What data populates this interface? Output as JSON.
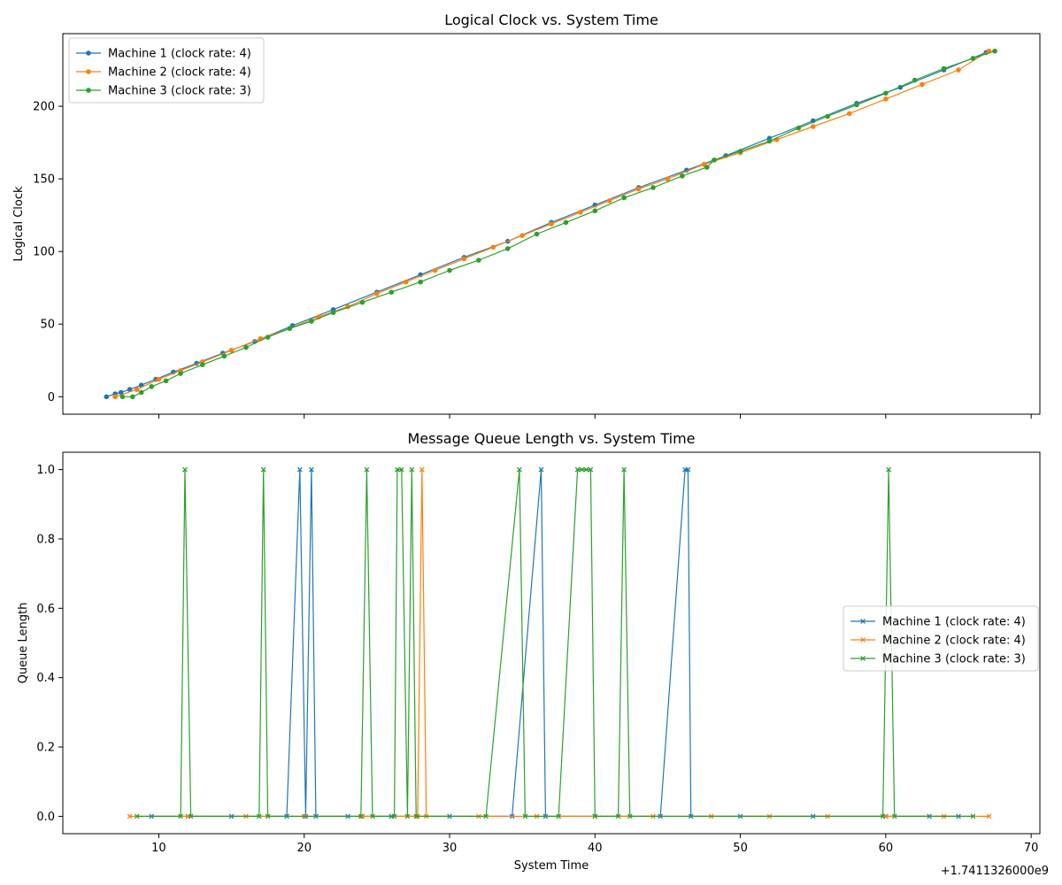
{
  "figure": {
    "offset_text": "+1.7411326000e9"
  },
  "chart_data": [
    {
      "type": "line",
      "title": "Logical Clock vs. System Time",
      "xlabel": "",
      "ylabel": "Logical Clock",
      "xlim": [
        3.4,
        70.6
      ],
      "ylim": [
        -12,
        250
      ],
      "x_ticks": [
        10,
        20,
        30,
        40,
        50,
        60,
        70
      ],
      "x_tick_labels": [
        "",
        "",
        "",
        "",
        "",
        "",
        ""
      ],
      "y_ticks": [
        0,
        50,
        100,
        150,
        200
      ],
      "y_tick_labels": [
        "0",
        "50",
        "100",
        "150",
        "200"
      ],
      "grid": false,
      "legend_position": "top-left",
      "marker": "circle",
      "series": [
        {
          "name": "Machine 1 (clock rate: 4)",
          "color": "#1f77b4",
          "x": [
            6.4,
            7.0,
            7.4,
            8.0,
            8.8,
            9.8,
            11.0,
            12.6,
            14.4,
            16.6,
            19.2,
            22.0,
            25.0,
            28.0,
            31.0,
            34.0,
            37.0,
            40.0,
            43.0,
            46.3,
            49.0,
            52.0,
            55.0,
            58.0,
            61.0,
            64.0,
            66.9
          ],
          "y": [
            0,
            2,
            3,
            5,
            8,
            12,
            17,
            23,
            30,
            38,
            49,
            60,
            72,
            84,
            96,
            107,
            120,
            132,
            144,
            156,
            166,
            178,
            190,
            202,
            213,
            225,
            237
          ]
        },
        {
          "name": "Machine 2 (clock rate: 4)",
          "color": "#ff7f0e",
          "x": [
            7.0,
            8.5,
            10.0,
            11.5,
            13.0,
            15.0,
            17.0,
            19.0,
            21.0,
            23.0,
            25.0,
            27.0,
            29.0,
            31.0,
            33.0,
            35.0,
            37.0,
            39.0,
            41.0,
            43.0,
            45.0,
            47.5,
            50.0,
            52.5,
            55.0,
            57.5,
            60.0,
            62.5,
            65.0,
            67.1
          ],
          "y": [
            0,
            5,
            12,
            18,
            24,
            32,
            40,
            47,
            55,
            62,
            71,
            79,
            87,
            95,
            103,
            111,
            119,
            127,
            135,
            143,
            150,
            160,
            168,
            177,
            186,
            195,
            205,
            215,
            225,
            238
          ]
        },
        {
          "name": "Machine 3 (clock rate: 3)",
          "color": "#2ca02c",
          "x": [
            7.5,
            8.2,
            8.8,
            9.5,
            10.5,
            11.5,
            13.0,
            14.5,
            16.0,
            17.5,
            19.0,
            20.5,
            22.0,
            24.0,
            26.0,
            28.0,
            30.0,
            32.0,
            34.0,
            36.0,
            38.0,
            40.0,
            42.0,
            44.0,
            46.0,
            47.7,
            48.2,
            50.0,
            52.0,
            54.0,
            56.0,
            58.0,
            60.0,
            62.0,
            64.0,
            66.0,
            67.5
          ],
          "y": [
            0,
            0,
            3,
            7,
            11,
            16,
            22,
            28,
            34,
            41,
            47,
            52,
            58,
            65,
            72,
            79,
            87,
            94,
            102,
            112,
            120,
            128,
            137,
            144,
            152,
            158,
            163,
            169,
            176,
            185,
            193,
            201,
            209,
            218,
            226,
            233,
            238
          ]
        }
      ]
    },
    {
      "type": "line",
      "title": "Message Queue Length vs. System Time",
      "xlabel": "System Time",
      "ylabel": "Queue Length",
      "xlim": [
        3.4,
        70.6
      ],
      "ylim": [
        -0.05,
        1.05
      ],
      "x_ticks": [
        10,
        20,
        30,
        40,
        50,
        60,
        70
      ],
      "x_tick_labels": [
        "10",
        "20",
        "30",
        "40",
        "50",
        "60",
        "70"
      ],
      "y_ticks": [
        0.0,
        0.2,
        0.4,
        0.6,
        0.8,
        1.0
      ],
      "y_tick_labels": [
        "0.0",
        "0.2",
        "0.4",
        "0.6",
        "0.8",
        "1.0"
      ],
      "grid": false,
      "legend_position": "center-right",
      "marker": "x",
      "series": [
        {
          "name": "Machine 1 (clock rate: 4)",
          "color": "#1f77b4",
          "x": [
            9.5,
            12.0,
            15.0,
            18.8,
            19.7,
            20.1,
            20.5,
            20.8,
            23.0,
            26.0,
            30.0,
            34.3,
            36.3,
            36.6,
            40.0,
            44.5,
            46.2,
            46.4,
            46.6,
            50.0,
            55.0,
            60.0,
            63.0,
            65.0
          ],
          "y": [
            0,
            0,
            0,
            0,
            1,
            0,
            1,
            0,
            0,
            0,
            0,
            0,
            1,
            0,
            0,
            0,
            1,
            1,
            0,
            0,
            0,
            0,
            0,
            0
          ]
        },
        {
          "name": "Machine 2 (clock rate: 4)",
          "color": "#ff7f0e",
          "x": [
            8.0,
            12.0,
            16.0,
            20.0,
            24.0,
            27.8,
            28.1,
            28.4,
            32.0,
            36.0,
            40.0,
            44.0,
            48.0,
            52.0,
            56.0,
            60.0,
            64.0,
            67.1
          ],
          "y": [
            0,
            0,
            0,
            0,
            0,
            0,
            1,
            0,
            0,
            0,
            0,
            0,
            0,
            0,
            0,
            0,
            0,
            0
          ]
        },
        {
          "name": "Machine 3 (clock rate: 3)",
          "color": "#2ca02c",
          "x": [
            8.5,
            11.5,
            11.8,
            12.2,
            16.9,
            17.2,
            17.5,
            23.9,
            24.3,
            24.7,
            26.2,
            26.4,
            26.7,
            27.1,
            27.4,
            27.7,
            32.5,
            34.8,
            35.2,
            37.5,
            38.8,
            39.1,
            39.4,
            39.7,
            40.0,
            41.6,
            42.0,
            42.4,
            59.8,
            60.2,
            60.6,
            66.0
          ],
          "y": [
            0,
            0,
            1,
            0,
            0,
            1,
            0,
            0,
            1,
            0,
            0,
            1,
            1,
            0,
            1,
            0,
            0,
            1,
            0,
            0,
            1,
            1,
            1,
            1,
            0,
            0,
            1,
            0,
            0,
            1,
            0,
            0
          ]
        }
      ]
    }
  ]
}
